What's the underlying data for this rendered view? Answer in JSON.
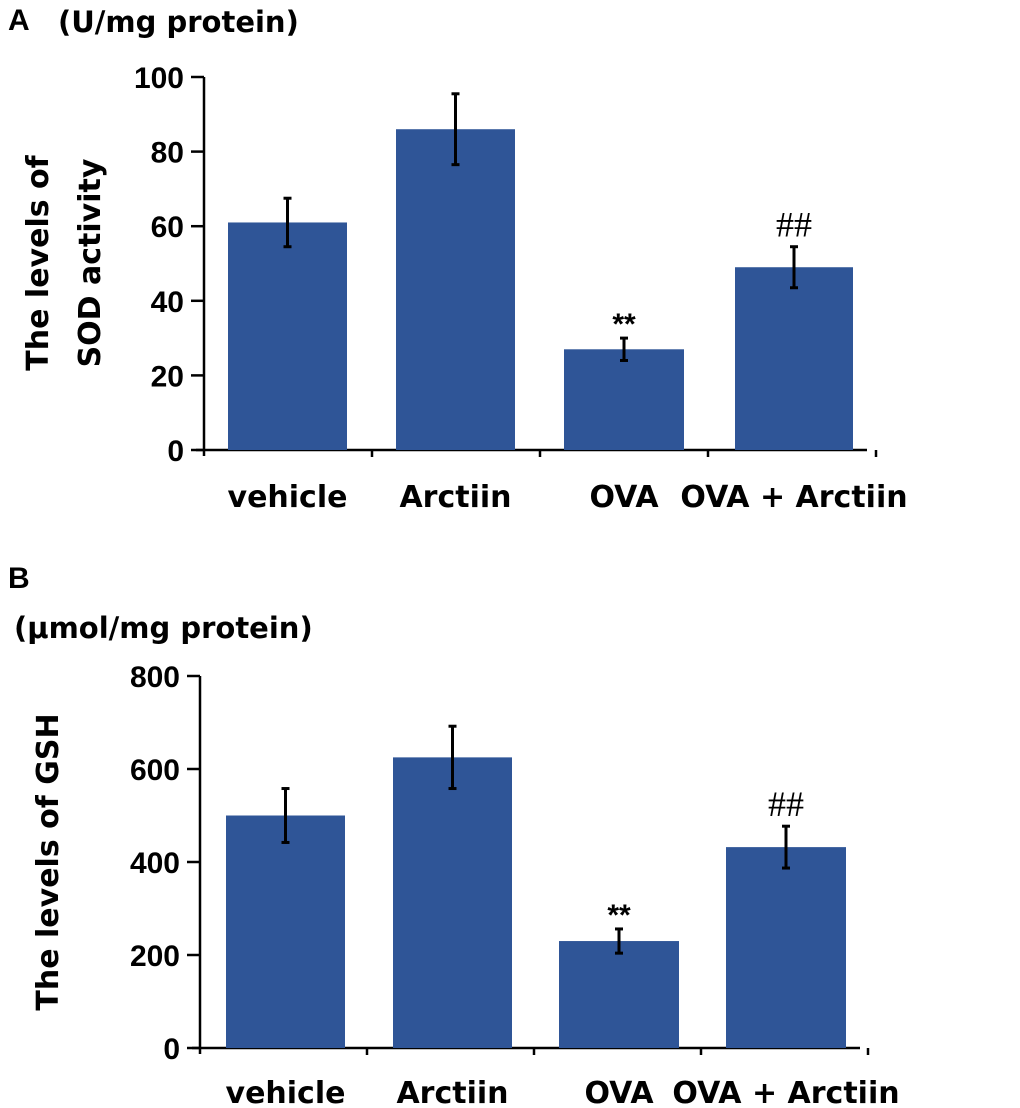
{
  "chart_data": [
    {
      "type": "bar",
      "panel": "A",
      "unit": "(U/mg protein)",
      "title": "",
      "ylabel_lines": [
        "The levels of",
        "SOD activity"
      ],
      "xlabel": "",
      "categories": [
        "vehicle",
        "Arctiin",
        "OVA",
        "OVA + Arctiin"
      ],
      "values": [
        61,
        86,
        27,
        49
      ],
      "errors": [
        6.5,
        9.5,
        3,
        5.5
      ],
      "annotations": [
        "",
        "",
        "**",
        "##"
      ],
      "ylim": [
        0,
        100
      ],
      "yticks": [
        0,
        20,
        40,
        60,
        80,
        100
      ],
      "ytick_labels": [
        "0",
        "20",
        "40",
        "60",
        "80",
        "100"
      ],
      "bar_color": "#2f5597",
      "grid": false,
      "legend": "none"
    },
    {
      "type": "bar",
      "panel": "B",
      "unit": "(μmol/mg protein)",
      "title": "",
      "ylabel_lines": [
        "The levels of GSH"
      ],
      "xlabel": "",
      "categories": [
        "vehicle",
        "Arctiin",
        "OVA",
        "OVA + Arctiin"
      ],
      "values": [
        500,
        625,
        230,
        432
      ],
      "errors": [
        58,
        67,
        26,
        45
      ],
      "annotations": [
        "",
        "",
        "**",
        "##"
      ],
      "ylim": [
        0,
        800
      ],
      "yticks": [
        0,
        200,
        400,
        600,
        800
      ],
      "ytick_labels": [
        "0",
        "200",
        "400",
        "600",
        "800"
      ],
      "bar_color": "#2f5597",
      "grid": false,
      "legend": "none"
    }
  ]
}
